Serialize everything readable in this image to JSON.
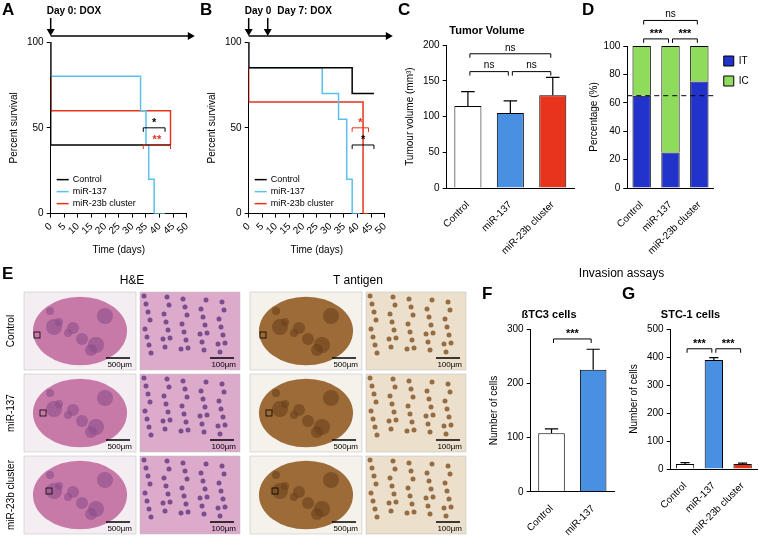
{
  "group_title": "Invasion assays",
  "chart_data": [
    {
      "panel_label": "A",
      "type": "line",
      "line_style": "step",
      "arrows": [
        {
          "x": 0,
          "text": "Day 0: DOX"
        }
      ],
      "x_label": "Time (days)",
      "y_label": "Percent survival",
      "xlim": [
        0,
        50
      ],
      "xticks": [
        0,
        5,
        10,
        15,
        20,
        25,
        30,
        35,
        40,
        45,
        50
      ],
      "ylim": [
        0,
        100
      ],
      "yticks": [
        0,
        50,
        100
      ],
      "grid": false,
      "legend": "lower left",
      "series": [
        {
          "name": "Control",
          "color": "#000000",
          "x": [
            0,
            42,
            44
          ],
          "values": [
            100,
            40,
            40
          ]
        },
        {
          "name": "miR-137",
          "color": "#5bc0eb",
          "x": [
            0,
            33,
            35,
            36,
            38,
            42
          ],
          "values": [
            100,
            80,
            60,
            40,
            20,
            0
          ]
        },
        {
          "name": "miR-23b cluster",
          "color": "#e8341c",
          "x": [
            0,
            44,
            44
          ],
          "values": [
            100,
            60,
            40
          ]
        }
      ],
      "annotations": [
        {
          "text": "*",
          "x": [
            34,
            42
          ],
          "y": 50,
          "color": "#000000"
        },
        {
          "text": "**",
          "x": [
            34,
            44
          ],
          "y": 40,
          "color": "#e8341c"
        }
      ]
    },
    {
      "panel_label": "B",
      "type": "line",
      "line_style": "step",
      "arrows": [
        {
          "x": 0,
          "text": "Day 0"
        },
        {
          "x": 7,
          "text": "Day 7: DOX"
        }
      ],
      "x_label": "Time (days)",
      "y_label": "Percent survival",
      "xlim": [
        0,
        50
      ],
      "xticks": [
        0,
        5,
        10,
        15,
        20,
        25,
        30,
        35,
        40,
        45,
        50
      ],
      "ylim": [
        0,
        100
      ],
      "yticks": [
        0,
        50,
        100
      ],
      "grid": false,
      "legend": "lower left",
      "series": [
        {
          "name": "Control",
          "color": "#000000",
          "x": [
            0,
            38,
            40,
            46
          ],
          "values": [
            100,
            85,
            70,
            70
          ]
        },
        {
          "name": "miR-137",
          "color": "#5bc0eb",
          "x": [
            0,
            27,
            33,
            36,
            38,
            41
          ],
          "values": [
            100,
            85,
            70,
            55,
            20,
            0
          ]
        },
        {
          "name": "miR-23b cluster",
          "color": "#e8341c",
          "x": [
            0,
            42,
            44
          ],
          "values": [
            100,
            65,
            0
          ]
        }
      ],
      "annotations": [
        {
          "text": "*",
          "x": [
            38,
            44
          ],
          "y": 50,
          "color": "#e8341c"
        },
        {
          "text": "*",
          "x": [
            38,
            46
          ],
          "y": 40,
          "color": "#000000"
        }
      ]
    },
    {
      "panel_label": "C",
      "type": "bar",
      "title": "Tumor Volume",
      "y_label": "Tumour volume (mm³)",
      "categories": [
        "Control",
        "miR-137",
        "miR-23b cluster"
      ],
      "values": [
        115,
        105,
        130
      ],
      "errors": [
        20,
        17,
        25
      ],
      "colors": [
        "#ffffff",
        "#4a90e2",
        "#e8341c"
      ],
      "ylim": [
        0,
        200
      ],
      "yticks": [
        0,
        50,
        100,
        150,
        200
      ],
      "grid": false,
      "annotations": [
        {
          "text": "ns",
          "between": [
            "Control",
            "miR-23b cluster"
          ],
          "y": 188
        },
        {
          "text": "ns",
          "between": [
            "Control",
            "miR-137"
          ],
          "y": 163
        },
        {
          "text": "ns",
          "between": [
            "miR-137",
            "miR-23b cluster"
          ],
          "y": 163
        }
      ]
    },
    {
      "panel_label": "D",
      "type": "bar",
      "stacked": true,
      "y_label": "Percentage (%)",
      "categories": [
        "Control",
        "miR-137",
        "miR-23b cluster"
      ],
      "series": [
        {
          "name": "IT",
          "color": "#2233cc",
          "values": [
            65,
            25,
            75
          ]
        },
        {
          "name": "IC",
          "color": "#8fdc5c",
          "values": [
            35,
            75,
            25
          ]
        }
      ],
      "ylim": [
        0,
        100
      ],
      "yticks": [
        0,
        20,
        40,
        60,
        80,
        100
      ],
      "grid": false,
      "legend": "right",
      "reference_line": {
        "y": 65,
        "line_style": "dashed"
      },
      "annotations": [
        {
          "text": "ns",
          "between": [
            "Control",
            "miR-23b cluster"
          ],
          "y": 118
        },
        {
          "text": "***",
          "between": [
            "Control",
            "miR-137"
          ],
          "y": 105
        },
        {
          "text": "***",
          "between": [
            "miR-137",
            "miR-23b cluster"
          ],
          "y": 105
        }
      ]
    },
    {
      "panel_label": "F",
      "type": "bar",
      "title": "ßTC3 cells",
      "y_label": "Number of cells",
      "categories": [
        "Control",
        "miR-137"
      ],
      "values": [
        108,
        225
      ],
      "errors": [
        8,
        38
      ],
      "colors": [
        "#ffffff",
        "#4a90e2"
      ],
      "ylim": [
        0,
        300
      ],
      "yticks": [
        0,
        100,
        200,
        300
      ],
      "grid": false,
      "annotations": [
        {
          "text": "***",
          "between": [
            "Control",
            "miR-137"
          ],
          "y": 282
        }
      ]
    },
    {
      "panel_label": "G",
      "type": "bar",
      "title": "STC-1 cells",
      "y_label": "Number of cells",
      "categories": [
        "Control",
        "miR-137",
        "miR-23b cluster"
      ],
      "values": [
        18,
        390,
        18
      ],
      "errors": [
        5,
        8,
        3
      ],
      "colors": [
        "#ffffff",
        "#4a90e2",
        "#e8341c"
      ],
      "ylim": [
        0,
        500
      ],
      "yticks": [
        0,
        100,
        200,
        300,
        400,
        500
      ],
      "grid": false,
      "annotations": [
        {
          "text": "***",
          "between": [
            "Control",
            "miR-137"
          ],
          "y": 430
        },
        {
          "text": "***",
          "between": [
            "miR-137",
            "miR-23b cluster"
          ],
          "y": 430
        }
      ]
    }
  ],
  "histology": {
    "panel_label": "E",
    "rows": [
      "Control",
      "miR-137",
      "miR-23b cluster"
    ],
    "stains": [
      {
        "name": "H&E",
        "scale_bars": [
          "500µm",
          "100µm"
        ]
      },
      {
        "name": "T antigen",
        "scale_bars": [
          "500µm",
          "100µm"
        ]
      }
    ]
  }
}
